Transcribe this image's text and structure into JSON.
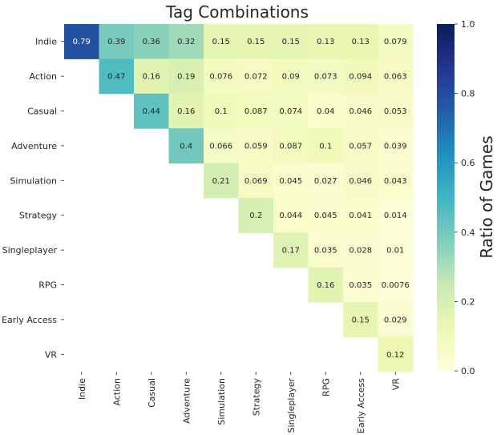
{
  "chart_data": {
    "type": "heatmap",
    "title": "Tag Combinations",
    "row_labels": [
      "Indie",
      "Action",
      "Casual",
      "Adventure",
      "Simulation",
      "Strategy",
      "Singleplayer",
      "RPG",
      "Early Access",
      "VR"
    ],
    "col_labels": [
      "Indie",
      "Action",
      "Casual",
      "Adventure",
      "Simulation",
      "Strategy",
      "Singleplayer",
      "RPG",
      "Early Access",
      "VR"
    ],
    "values": [
      [
        0.79,
        0.39,
        0.36,
        0.32,
        0.15,
        0.15,
        0.15,
        0.13,
        0.13,
        0.079
      ],
      [
        null,
        0.47,
        0.16,
        0.19,
        0.076,
        0.072,
        0.09,
        0.073,
        0.094,
        0.063
      ],
      [
        null,
        null,
        0.44,
        0.16,
        0.1,
        0.087,
        0.074,
        0.04,
        0.046,
        0.053
      ],
      [
        null,
        null,
        null,
        0.4,
        0.066,
        0.059,
        0.087,
        0.1,
        0.057,
        0.039
      ],
      [
        null,
        null,
        null,
        null,
        0.21,
        0.069,
        0.045,
        0.027,
        0.046,
        0.043
      ],
      [
        null,
        null,
        null,
        null,
        null,
        0.2,
        0.044,
        0.045,
        0.041,
        0.014
      ],
      [
        null,
        null,
        null,
        null,
        null,
        null,
        0.17,
        0.035,
        0.028,
        0.01
      ],
      [
        null,
        null,
        null,
        null,
        null,
        null,
        null,
        0.16,
        0.035,
        0.0076
      ],
      [
        null,
        null,
        null,
        null,
        null,
        null,
        null,
        null,
        0.15,
        0.029
      ],
      [
        null,
        null,
        null,
        null,
        null,
        null,
        null,
        null,
        null,
        0.12
      ]
    ],
    "value_labels": [
      [
        "0.79",
        "0.39",
        "0.36",
        "0.32",
        "0.15",
        "0.15",
        "0.15",
        "0.13",
        "0.13",
        "0.079"
      ],
      [
        null,
        "0.47",
        "0.16",
        "0.19",
        "0.076",
        "0.072",
        "0.09",
        "0.073",
        "0.094",
        "0.063"
      ],
      [
        null,
        null,
        "0.44",
        "0.16",
        "0.1",
        "0.087",
        "0.074",
        "0.04",
        "0.046",
        "0.053"
      ],
      [
        null,
        null,
        null,
        "0.4",
        "0.066",
        "0.059",
        "0.087",
        "0.1",
        "0.057",
        "0.039"
      ],
      [
        null,
        null,
        null,
        null,
        "0.21",
        "0.069",
        "0.045",
        "0.027",
        "0.046",
        "0.043"
      ],
      [
        null,
        null,
        null,
        null,
        null,
        "0.2",
        "0.044",
        "0.045",
        "0.041",
        "0.014"
      ],
      [
        null,
        null,
        null,
        null,
        null,
        null,
        "0.17",
        "0.035",
        "0.028",
        "0.01"
      ],
      [
        null,
        null,
        null,
        null,
        null,
        null,
        null,
        "0.16",
        "0.035",
        "0.0076"
      ],
      [
        null,
        null,
        null,
        null,
        null,
        null,
        null,
        null,
        "0.15",
        "0.029"
      ],
      [
        null,
        null,
        null,
        null,
        null,
        null,
        null,
        null,
        null,
        "0.12"
      ]
    ],
    "colorbar": {
      "label": "Ratio of Games",
      "range": [
        0.0,
        1.0
      ],
      "ticks": [
        "0.0",
        "0.2",
        "0.4",
        "0.6",
        "0.8",
        "1.0"
      ],
      "colormap": "YlGnBu"
    },
    "grid": false,
    "masked": "lower-triangle"
  }
}
